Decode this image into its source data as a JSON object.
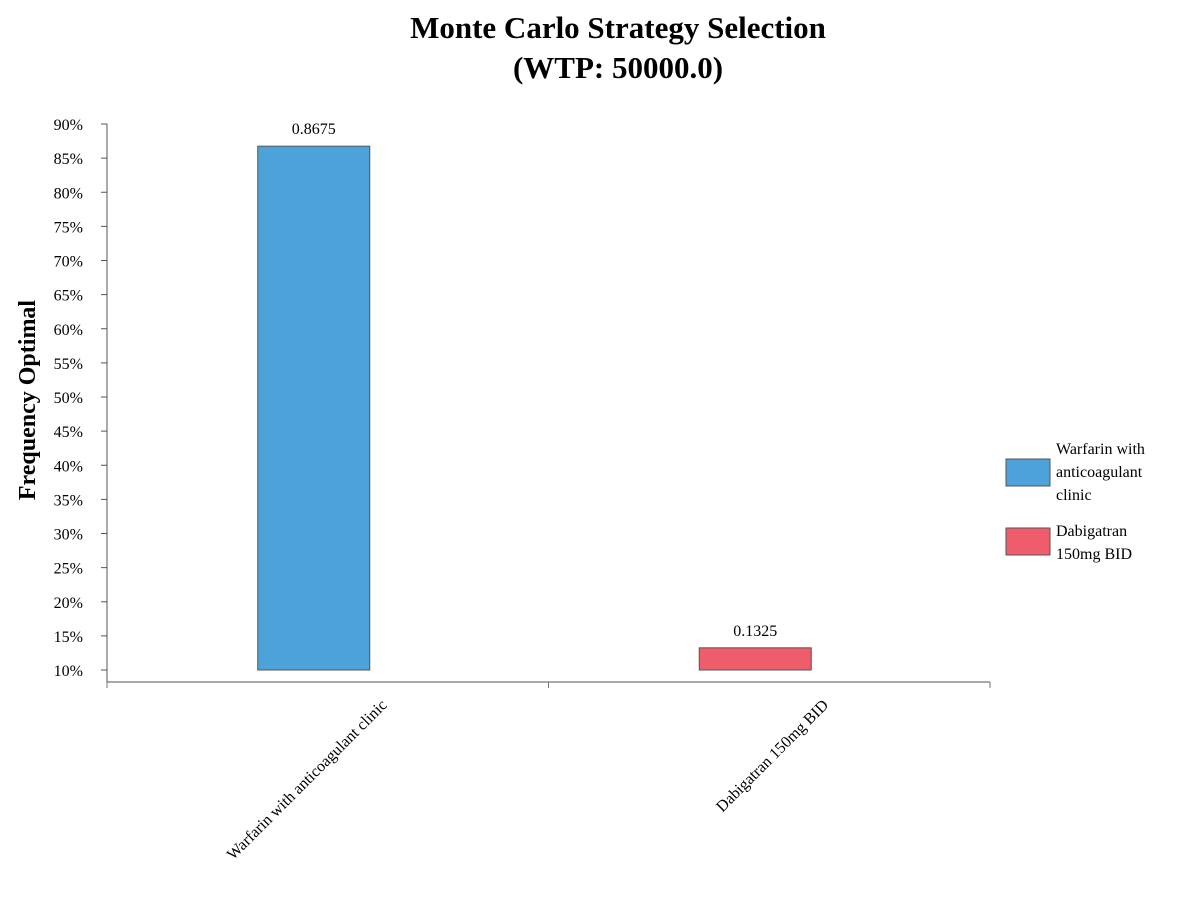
{
  "chart_data": {
    "type": "bar",
    "title": [
      "Monte Carlo Strategy Selection",
      "(WTP: 50000.0)"
    ],
    "xlabel": "",
    "ylabel": "Frequency Optimal",
    "categories": [
      "Warfarin with anticoagulant clinic",
      "Dabigatran 150mg BID"
    ],
    "values": [
      0.8675,
      0.1325
    ],
    "value_labels": [
      "0.8675",
      "0.1325"
    ],
    "colors": [
      "#4da3d9",
      "#ef5d6c"
    ],
    "ylim": [
      0.1,
      0.9
    ],
    "yticks": [
      0.1,
      0.15,
      0.2,
      0.25,
      0.3,
      0.35,
      0.4,
      0.45,
      0.5,
      0.55,
      0.6,
      0.65,
      0.7,
      0.75,
      0.8,
      0.85,
      0.9
    ],
    "ytick_labels": [
      "10%",
      "15%",
      "20%",
      "25%",
      "30%",
      "35%",
      "40%",
      "45%",
      "50%",
      "55%",
      "60%",
      "65%",
      "70%",
      "75%",
      "80%",
      "85%",
      "90%"
    ],
    "legend": {
      "position": "right",
      "entries": [
        {
          "label": [
            "Warfarin with",
            "anticoagulant",
            "clinic"
          ],
          "color": "#4da3d9"
        },
        {
          "label": [
            "Dabigatran",
            "150mg BID"
          ],
          "color": "#ef5d6c"
        }
      ]
    },
    "grid": false
  }
}
